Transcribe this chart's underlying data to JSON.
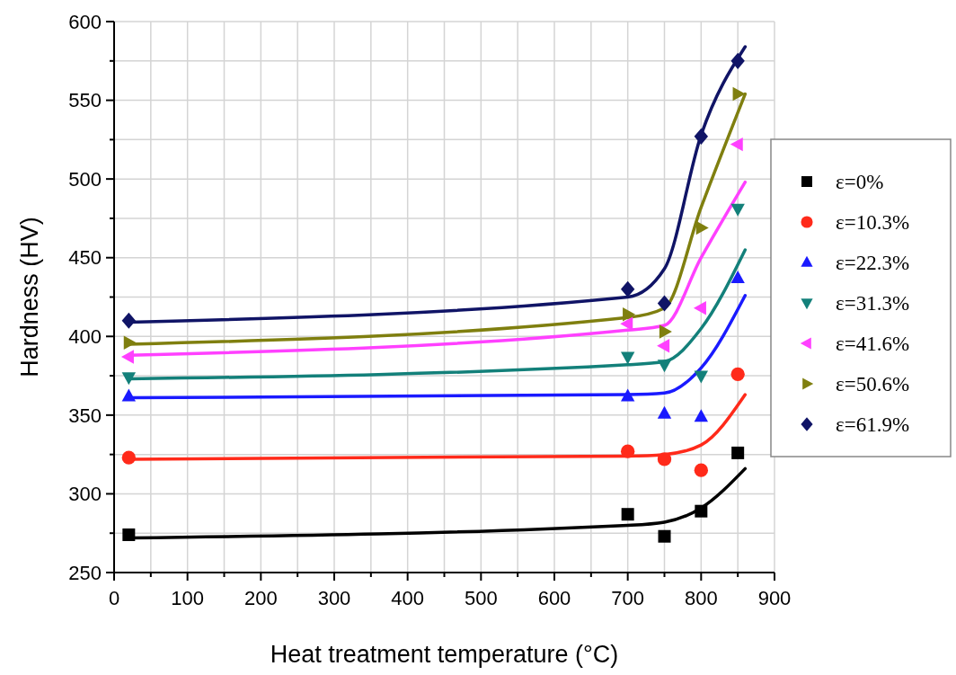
{
  "chart_data": {
    "type": "scatter",
    "xlabel": "Heat treatment temperature (°C)",
    "ylabel": "Hardness (HV)",
    "xlim": [
      0,
      900
    ],
    "ylim": [
      250,
      600
    ],
    "xticks": [
      0,
      {
        "value": 50,
        "label": null
      },
      100,
      {
        "value": 150,
        "label": null
      },
      200,
      {
        "value": 250,
        "label": null
      },
      300,
      {
        "value": 350,
        "label": null
      },
      400,
      {
        "value": 450,
        "label": null
      },
      500,
      {
        "value": 550,
        "label": null
      },
      600,
      {
        "value": 650,
        "label": null
      },
      700,
      {
        "value": 750,
        "label": null
      },
      800,
      {
        "value": 850,
        "label": null
      },
      900
    ],
    "yticks": [
      250,
      {
        "value": 275,
        "label": null
      },
      300,
      {
        "value": 325,
        "label": null
      },
      350,
      {
        "value": 375,
        "label": null
      },
      400,
      {
        "value": 425,
        "label": null
      },
      450,
      {
        "value": 475,
        "label": null
      },
      500,
      {
        "value": 525,
        "label": null
      },
      550,
      {
        "value": 575,
        "label": null
      },
      600
    ],
    "grid": true,
    "legend": "right",
    "series": [
      {
        "name": "ε=0%",
        "color": "#000000",
        "marker": "square",
        "x": [
          20,
          700,
          750,
          800,
          850
        ],
        "values": [
          274,
          287,
          273,
          289,
          326
        ]
      },
      {
        "name": "ε=10.3%",
        "color": "#ff2a1a",
        "marker": "circle",
        "x": [
          20,
          700,
          750,
          800,
          850
        ],
        "values": [
          323,
          327,
          322,
          315,
          376
        ]
      },
      {
        "name": "ε=22.3%",
        "color": "#1a1aff",
        "marker": "triangle",
        "x": [
          20,
          700,
          750,
          800,
          850
        ],
        "values": [
          362,
          362,
          351,
          349,
          437
        ]
      },
      {
        "name": "ε=31.3%",
        "color": "#13807a",
        "marker": "triangle-down",
        "x": [
          20,
          700,
          750,
          800,
          850
        ],
        "values": [
          374,
          387,
          382,
          375,
          481
        ]
      },
      {
        "name": "ε=41.6%",
        "color": "#ff40ff",
        "marker": "triangle-left",
        "x": [
          20,
          700,
          750,
          800,
          850
        ],
        "values": [
          387,
          408,
          394,
          418,
          522
        ]
      },
      {
        "name": "ε=50.6%",
        "color": "#7f7f0f",
        "marker": "triangle-right",
        "x": [
          20,
          700,
          750,
          800,
          850
        ],
        "values": [
          396,
          414,
          403,
          469,
          554
        ]
      },
      {
        "name": "ε=61.9%",
        "color": "#101466",
        "marker": "diamond",
        "x": [
          20,
          700,
          750,
          800,
          850
        ],
        "values": [
          410,
          430,
          421,
          527,
          575
        ]
      },
      {
        "type": "line",
        "color": "#000000",
        "x": [
          20,
          700,
          750,
          800,
          860
        ],
        "values": [
          272,
          280,
          282,
          291,
          316
        ]
      },
      {
        "type": "line",
        "color": "#ff2a1a",
        "x": [
          20,
          700,
          750,
          800,
          860
        ],
        "values": [
          322,
          324,
          325,
          331,
          363
        ]
      },
      {
        "type": "line",
        "color": "#1a1aff",
        "x": [
          20,
          700,
          750,
          800,
          860
        ],
        "values": [
          361,
          363,
          364,
          380,
          426
        ]
      },
      {
        "type": "line",
        "color": "#13807a",
        "x": [
          20,
          700,
          750,
          800,
          860
        ],
        "values": [
          373,
          382,
          384,
          405,
          455
        ]
      },
      {
        "type": "line",
        "color": "#ff40ff",
        "x": [
          20,
          700,
          750,
          800,
          860
        ],
        "values": [
          388,
          404,
          407,
          450,
          498
        ]
      },
      {
        "type": "line",
        "color": "#7f7f0f",
        "x": [
          20,
          700,
          750,
          800,
          860
        ],
        "values": [
          395,
          412,
          418,
          482,
          554
        ]
      },
      {
        "type": "line",
        "color": "#101466",
        "x": [
          20,
          700,
          750,
          800,
          860
        ],
        "values": [
          409,
          425,
          443,
          528,
          584
        ]
      }
    ]
  }
}
